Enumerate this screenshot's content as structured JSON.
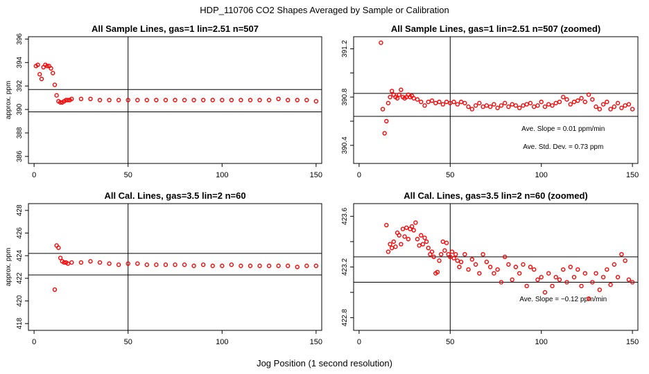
{
  "figure": {
    "title": "HDP_110706  CO2 Shapes Averaged by Sample or Calibration",
    "xlabel": "Jog Position (1 second resolution)"
  },
  "colors": {
    "points": "#ff0000",
    "lines": "#000000"
  },
  "chart_data": [
    {
      "type": "scatter",
      "title": "All Sample Lines, gas=1 lin=2.51 n=507",
      "ylabel": "approx. ppm",
      "xlim": [
        -3,
        153
      ],
      "ylim": [
        385.4,
        396.2
      ],
      "xticks": [
        0,
        50,
        100,
        150
      ],
      "xtick_labels": [
        "0",
        "50",
        "100",
        "150"
      ],
      "yticks": [
        386,
        388,
        390,
        392,
        394,
        396
      ],
      "ytick_labels": [
        "386",
        "388",
        "390",
        "392",
        "394",
        "396"
      ],
      "hlines": [
        391.7,
        389.8
      ],
      "vline": 50,
      "annotations": [],
      "x": [
        1,
        2,
        3,
        4,
        5,
        6,
        7,
        8,
        9,
        10,
        11,
        12,
        13,
        14,
        15,
        16,
        17,
        18,
        19,
        20,
        25,
        30,
        35,
        40,
        45,
        50,
        55,
        60,
        65,
        70,
        75,
        80,
        85,
        90,
        95,
        100,
        105,
        110,
        115,
        120,
        125,
        130,
        135,
        140,
        145,
        150
      ],
      "y": [
        393.7,
        393.8,
        393.0,
        392.6,
        393.6,
        393.8,
        393.7,
        393.7,
        393.5,
        393.1,
        392.1,
        391.2,
        390.7,
        390.6,
        390.6,
        390.7,
        390.8,
        390.8,
        390.8,
        390.9,
        390.9,
        390.9,
        390.8,
        390.8,
        390.8,
        390.8,
        390.8,
        390.8,
        390.8,
        390.8,
        390.8,
        390.8,
        390.8,
        390.8,
        390.8,
        390.8,
        390.8,
        390.8,
        390.8,
        390.8,
        390.8,
        390.9,
        390.8,
        390.8,
        390.8,
        390.7
      ]
    },
    {
      "type": "scatter",
      "title": "All Sample Lines, gas=1 lin=2.51 n=507 (zoomed)",
      "ylabel": "",
      "xlim": [
        -3,
        153
      ],
      "ylim": [
        390.25,
        391.3
      ],
      "xticks": [
        0,
        50,
        100,
        150
      ],
      "xtick_labels": [
        "0",
        "50",
        "100",
        "150"
      ],
      "yticks": [
        390.4,
        390.6,
        390.8,
        391.0,
        391.2
      ],
      "ytick_labels": [
        "390.4",
        "",
        "390.8",
        "",
        "391.2"
      ],
      "hlines": [
        390.83,
        390.64
      ],
      "vline": 50,
      "annotations": [
        {
          "text": "Ave. Slope =  0.01  ppm/min",
          "x": 112,
          "y": 390.52
        },
        {
          "text": "Ave. Std. Dev. =  0.73  ppm",
          "x": 112,
          "y": 390.37
        }
      ],
      "x": [
        12,
        13,
        14,
        15,
        16,
        17,
        18,
        19,
        20,
        21,
        22,
        23,
        24,
        25,
        26,
        27,
        28,
        29,
        30,
        32,
        34,
        36,
        38,
        40,
        42,
        44,
        46,
        48,
        50,
        52,
        54,
        56,
        58,
        60,
        62,
        64,
        66,
        68,
        70,
        72,
        74,
        76,
        78,
        80,
        82,
        84,
        86,
        88,
        90,
        92,
        94,
        96,
        98,
        100,
        102,
        104,
        106,
        108,
        110,
        112,
        114,
        116,
        118,
        120,
        122,
        124,
        126,
        128,
        130,
        132,
        134,
        136,
        138,
        140,
        142,
        144,
        146,
        148,
        150
      ],
      "y": [
        391.25,
        390.7,
        390.5,
        390.6,
        390.75,
        390.8,
        390.85,
        390.82,
        390.8,
        390.79,
        390.82,
        390.86,
        390.8,
        390.79,
        390.8,
        390.82,
        390.8,
        390.81,
        390.79,
        390.78,
        390.76,
        390.73,
        390.76,
        390.77,
        390.75,
        390.76,
        390.74,
        390.76,
        390.75,
        390.76,
        390.74,
        390.76,
        390.75,
        390.72,
        390.7,
        390.73,
        390.75,
        390.72,
        390.73,
        390.72,
        390.74,
        390.71,
        390.73,
        390.75,
        390.72,
        390.74,
        390.73,
        390.71,
        390.73,
        390.74,
        390.75,
        390.72,
        390.73,
        390.76,
        390.72,
        390.74,
        390.73,
        390.75,
        390.76,
        390.8,
        390.78,
        390.74,
        390.76,
        390.77,
        390.79,
        390.76,
        390.82,
        390.78,
        390.72,
        390.7,
        390.74,
        390.76,
        390.7,
        390.72,
        390.75,
        390.71,
        390.73,
        390.74,
        390.7
      ]
    },
    {
      "type": "scatter",
      "title": "All Cal. Lines, gas=3.5 lin=2 n=60",
      "ylabel": "approx. ppm",
      "xlim": [
        -3,
        153
      ],
      "ylim": [
        417.4,
        428.6
      ],
      "xticks": [
        0,
        50,
        100,
        150
      ],
      "xtick_labels": [
        "0",
        "50",
        "100",
        "150"
      ],
      "yticks": [
        418,
        420,
        422,
        424,
        426,
        428
      ],
      "ytick_labels": [
        "418",
        "420",
        "422",
        "424",
        "426",
        "428"
      ],
      "hlines": [
        424.2,
        422.3
      ],
      "vline": 50,
      "annotations": [],
      "x": [
        11,
        12,
        13,
        14,
        15,
        16,
        17,
        18,
        20,
        25,
        30,
        35,
        40,
        45,
        50,
        55,
        60,
        65,
        70,
        75,
        80,
        85,
        90,
        95,
        100,
        105,
        110,
        115,
        120,
        125,
        130,
        135,
        140,
        145,
        150
      ],
      "y": [
        421.0,
        424.9,
        424.7,
        423.8,
        423.5,
        423.4,
        423.4,
        423.3,
        423.4,
        423.4,
        423.5,
        423.4,
        423.3,
        423.2,
        423.3,
        423.3,
        423.2,
        423.2,
        423.2,
        423.2,
        423.2,
        423.1,
        423.2,
        423.1,
        423.1,
        423.2,
        423.1,
        423.1,
        423.1,
        423.1,
        423.1,
        423.1,
        423.0,
        423.1,
        423.1
      ]
    },
    {
      "type": "scatter",
      "title": "All Cal. Lines, gas=3.5 lin=2 n=60 (zoomed)",
      "ylabel": "",
      "xlim": [
        -3,
        153
      ],
      "ylim": [
        422.7,
        423.7
      ],
      "xticks": [
        0,
        50,
        100,
        150
      ],
      "xtick_labels": [
        "0",
        "50",
        "100",
        "150"
      ],
      "yticks": [
        422.8,
        423.0,
        423.2,
        423.4,
        423.6
      ],
      "ytick_labels": [
        "422.8",
        "",
        "423.2",
        "",
        "423.6"
      ],
      "hlines": [
        423.28,
        423.08
      ],
      "vline": 50,
      "annotations": [
        {
          "text": "Ave. Slope =  −0.12  ppm/min",
          "x": 112,
          "y": 422.93
        }
      ],
      "x": [
        15,
        16,
        17,
        18,
        19,
        20,
        21,
        22,
        23,
        24,
        25,
        26,
        27,
        28,
        29,
        30,
        31,
        32,
        33,
        34,
        35,
        36,
        37,
        38,
        39,
        40,
        41,
        42,
        43,
        44,
        45,
        46,
        47,
        48,
        49,
        50,
        51,
        52,
        53,
        54,
        55,
        56,
        58,
        60,
        62,
        64,
        66,
        68,
        70,
        72,
        74,
        76,
        78,
        80,
        82,
        84,
        86,
        88,
        90,
        92,
        94,
        96,
        98,
        100,
        102,
        104,
        106,
        108,
        110,
        112,
        114,
        116,
        118,
        120,
        122,
        124,
        126,
        128,
        130,
        132,
        134,
        136,
        138,
        140,
        142,
        144,
        146,
        148,
        150
      ],
      "y": [
        423.53,
        423.32,
        423.38,
        423.35,
        423.4,
        423.36,
        423.47,
        423.45,
        423.38,
        423.5,
        423.44,
        423.51,
        423.42,
        423.5,
        423.52,
        423.49,
        423.55,
        423.42,
        423.37,
        423.45,
        423.38,
        423.43,
        423.4,
        423.35,
        423.3,
        423.32,
        423.28,
        423.15,
        423.16,
        423.25,
        423.3,
        423.4,
        423.33,
        423.39,
        423.3,
        423.28,
        423.32,
        423.27,
        423.3,
        423.25,
        423.2,
        423.24,
        423.3,
        423.18,
        423.26,
        423.22,
        423.15,
        423.3,
        423.24,
        423.2,
        423.15,
        423.18,
        423.08,
        423.28,
        423.22,
        423.1,
        423.2,
        423.15,
        423.22,
        423.05,
        423.2,
        423.18,
        423.1,
        423.12,
        423.0,
        423.15,
        423.05,
        423.12,
        423.1,
        423.18,
        423.08,
        423.2,
        423.12,
        423.18,
        423.05,
        423.15,
        422.95,
        423.08,
        423.15,
        423.02,
        423.12,
        423.18,
        423.06,
        423.22,
        423.12,
        423.3,
        423.25,
        423.1,
        423.08
      ]
    }
  ]
}
